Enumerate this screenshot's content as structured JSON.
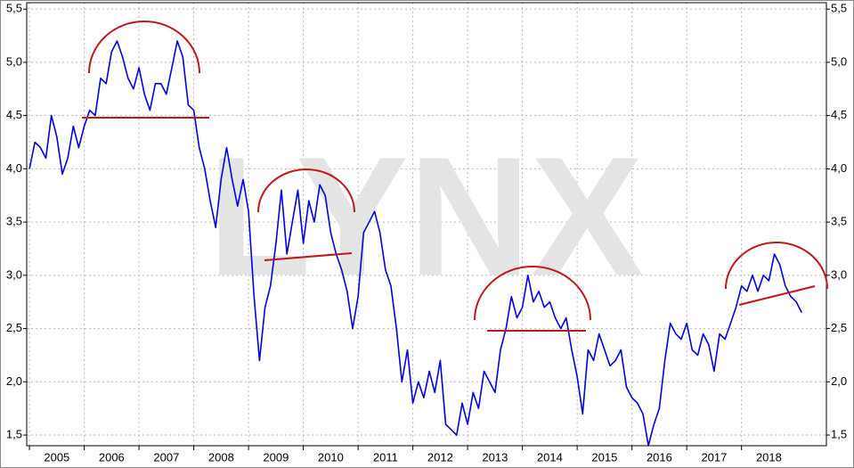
{
  "chart_data": {
    "type": "line",
    "watermark": "LYNX",
    "color": "#0000e0",
    "x": [
      2005.0,
      2005.1,
      2005.2,
      2005.3,
      2005.4,
      2005.5,
      2005.6,
      2005.7,
      2005.8,
      2005.9,
      2006.0,
      2006.1,
      2006.2,
      2006.3,
      2006.4,
      2006.5,
      2006.6,
      2006.7,
      2006.8,
      2006.9,
      2007.0,
      2007.1,
      2007.2,
      2007.3,
      2007.4,
      2007.5,
      2007.6,
      2007.7,
      2007.8,
      2007.9,
      2008.0,
      2008.1,
      2008.2,
      2008.3,
      2008.4,
      2008.5,
      2008.6,
      2008.7,
      2008.8,
      2008.9,
      2009.0,
      2009.1,
      2009.2,
      2009.3,
      2009.4,
      2009.5,
      2009.6,
      2009.7,
      2009.8,
      2009.9,
      2010.0,
      2010.1,
      2010.2,
      2010.3,
      2010.4,
      2010.5,
      2010.6,
      2010.7,
      2010.8,
      2010.9,
      2011.0,
      2011.1,
      2011.2,
      2011.3,
      2011.4,
      2011.5,
      2011.6,
      2011.7,
      2011.8,
      2011.9,
      2012.0,
      2012.1,
      2012.2,
      2012.3,
      2012.4,
      2012.5,
      2012.6,
      2012.7,
      2012.8,
      2012.9,
      2013.0,
      2013.1,
      2013.2,
      2013.3,
      2013.4,
      2013.5,
      2013.6,
      2013.7,
      2013.8,
      2013.9,
      2014.0,
      2014.1,
      2014.2,
      2014.3,
      2014.4,
      2014.5,
      2014.6,
      2014.7,
      2014.8,
      2014.9,
      2015.0,
      2015.1,
      2015.2,
      2015.3,
      2015.4,
      2015.5,
      2015.6,
      2015.7,
      2015.8,
      2015.9,
      2016.0,
      2016.1,
      2016.2,
      2016.3,
      2016.4,
      2016.5,
      2016.6,
      2016.7,
      2016.8,
      2016.9,
      2017.0,
      2017.1,
      2017.2,
      2017.3,
      2017.4,
      2017.5,
      2017.6,
      2017.7,
      2017.8,
      2017.9,
      2018.0,
      2018.1,
      2018.2,
      2018.3,
      2018.4,
      2018.5,
      2018.6,
      2018.7,
      2018.8,
      2018.9,
      2019.0,
      2019.1
    ],
    "values": [
      4.0,
      4.25,
      4.2,
      4.1,
      4.5,
      4.3,
      3.95,
      4.1,
      4.4,
      4.2,
      4.4,
      4.55,
      4.5,
      4.85,
      4.8,
      5.1,
      5.2,
      5.05,
      4.85,
      4.75,
      4.95,
      4.7,
      4.55,
      4.8,
      4.8,
      4.7,
      4.95,
      5.2,
      5.05,
      4.6,
      4.55,
      4.2,
      4.0,
      3.7,
      3.45,
      3.9,
      4.2,
      3.9,
      3.65,
      3.9,
      3.6,
      2.8,
      2.2,
      2.7,
      2.9,
      3.3,
      3.8,
      3.2,
      3.5,
      3.8,
      3.3,
      3.7,
      3.5,
      3.85,
      3.75,
      3.4,
      3.2,
      3.05,
      2.85,
      2.5,
      2.8,
      3.4,
      3.5,
      3.6,
      3.4,
      3.05,
      2.9,
      2.5,
      2.0,
      2.3,
      1.8,
      2.0,
      1.85,
      2.1,
      1.9,
      2.2,
      1.6,
      1.55,
      1.5,
      1.8,
      1.6,
      1.9,
      1.75,
      2.1,
      2.0,
      1.9,
      2.3,
      2.5,
      2.8,
      2.6,
      2.7,
      3.0,
      2.75,
      2.85,
      2.7,
      2.75,
      2.6,
      2.5,
      2.6,
      2.3,
      2.05,
      1.7,
      2.3,
      2.2,
      2.45,
      2.3,
      2.15,
      2.2,
      2.3,
      1.95,
      1.85,
      1.8,
      1.7,
      1.4,
      1.6,
      1.75,
      2.2,
      2.55,
      2.45,
      2.4,
      2.55,
      2.3,
      2.25,
      2.45,
      2.35,
      2.1,
      2.45,
      2.4,
      2.55,
      2.7,
      2.9,
      2.85,
      3.0,
      2.85,
      3.0,
      2.95,
      3.2,
      3.1,
      2.9,
      2.8,
      2.75,
      2.65
    ],
    "xlim": [
      2004.95,
      2019.55
    ],
    "xticks": [
      {
        "value": 2005,
        "label": "2005"
      },
      {
        "value": 2006,
        "label": "2006"
      },
      {
        "value": 2007,
        "label": "2007"
      },
      {
        "value": 2008,
        "label": "2008"
      },
      {
        "value": 2009,
        "label": "2009"
      },
      {
        "value": 2010,
        "label": "2010"
      },
      {
        "value": 2011,
        "label": "2011"
      },
      {
        "value": 2012,
        "label": "2012"
      },
      {
        "value": 2013,
        "label": "2013"
      },
      {
        "value": 2014,
        "label": "2014"
      },
      {
        "value": 2015,
        "label": "2015"
      },
      {
        "value": 2016,
        "label": "2016"
      },
      {
        "value": 2017,
        "label": "2017"
      },
      {
        "value": 2018,
        "label": "2018"
      }
    ],
    "ylim": [
      1.4,
      5.56
    ],
    "yticks": [
      {
        "value": 1.5,
        "label": "1,5"
      },
      {
        "value": 2.0,
        "label": "2,0"
      },
      {
        "value": 2.5,
        "label": "2,5"
      },
      {
        "value": 3.0,
        "label": "3,0"
      },
      {
        "value": 3.5,
        "label": "3,5"
      },
      {
        "value": 4.0,
        "label": "4,0"
      },
      {
        "value": 4.5,
        "label": "4,5"
      },
      {
        "value": 5.0,
        "label": "5,0"
      },
      {
        "value": 5.5,
        "label": "5,5"
      }
    ],
    "y2lim": [
      1.4,
      5.56
    ],
    "y2ticks": [
      {
        "value": 1.5,
        "label": "1,5"
      },
      {
        "value": 2.0,
        "label": "2,0"
      },
      {
        "value": 2.5,
        "label": "2,5"
      },
      {
        "value": 3.0,
        "label": "3,0"
      },
      {
        "value": 3.5,
        "label": "3,5"
      },
      {
        "value": 4.0,
        "label": "4,0"
      },
      {
        "value": 4.5,
        "label": "4,5"
      },
      {
        "value": 5.0,
        "label": "5,0"
      },
      {
        "value": 5.5,
        "label": "5,5"
      }
    ],
    "grid": true
  }
}
